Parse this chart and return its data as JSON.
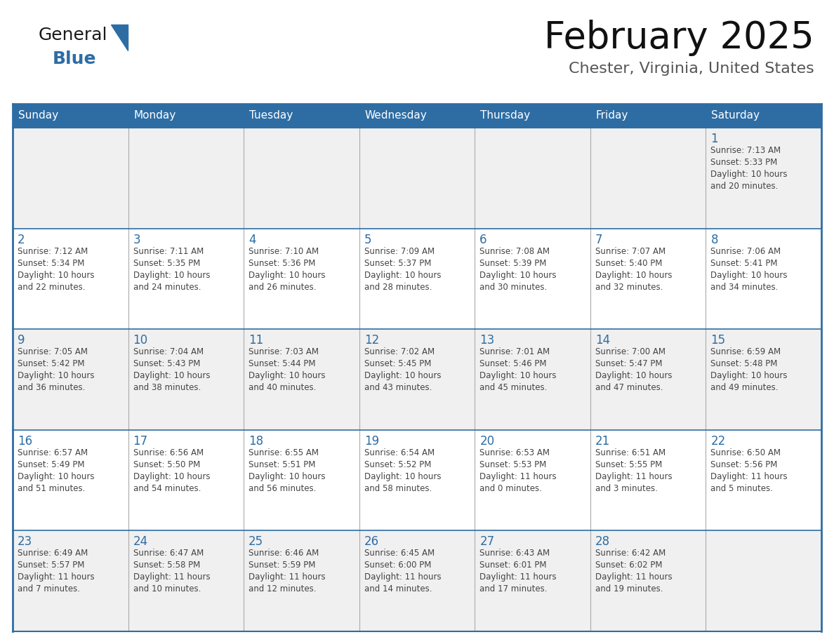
{
  "title": "February 2025",
  "subtitle": "Chester, Virginia, United States",
  "header_bg": "#2E6DA4",
  "header_text_color": "#FFFFFF",
  "cell_bg_odd_row": "#F0F0F0",
  "cell_bg_even_row": "#FFFFFF",
  "day_number_color": "#2E6DA4",
  "day_text_color": "#444444",
  "border_color": "#2E6DA4",
  "grid_line_color": "#AAAAAA",
  "days_of_week": [
    "Sunday",
    "Monday",
    "Tuesday",
    "Wednesday",
    "Thursday",
    "Friday",
    "Saturday"
  ],
  "weeks": [
    [
      {
        "day": null,
        "info": ""
      },
      {
        "day": null,
        "info": ""
      },
      {
        "day": null,
        "info": ""
      },
      {
        "day": null,
        "info": ""
      },
      {
        "day": null,
        "info": ""
      },
      {
        "day": null,
        "info": ""
      },
      {
        "day": 1,
        "info": "Sunrise: 7:13 AM\nSunset: 5:33 PM\nDaylight: 10 hours\nand 20 minutes."
      }
    ],
    [
      {
        "day": 2,
        "info": "Sunrise: 7:12 AM\nSunset: 5:34 PM\nDaylight: 10 hours\nand 22 minutes."
      },
      {
        "day": 3,
        "info": "Sunrise: 7:11 AM\nSunset: 5:35 PM\nDaylight: 10 hours\nand 24 minutes."
      },
      {
        "day": 4,
        "info": "Sunrise: 7:10 AM\nSunset: 5:36 PM\nDaylight: 10 hours\nand 26 minutes."
      },
      {
        "day": 5,
        "info": "Sunrise: 7:09 AM\nSunset: 5:37 PM\nDaylight: 10 hours\nand 28 minutes."
      },
      {
        "day": 6,
        "info": "Sunrise: 7:08 AM\nSunset: 5:39 PM\nDaylight: 10 hours\nand 30 minutes."
      },
      {
        "day": 7,
        "info": "Sunrise: 7:07 AM\nSunset: 5:40 PM\nDaylight: 10 hours\nand 32 minutes."
      },
      {
        "day": 8,
        "info": "Sunrise: 7:06 AM\nSunset: 5:41 PM\nDaylight: 10 hours\nand 34 minutes."
      }
    ],
    [
      {
        "day": 9,
        "info": "Sunrise: 7:05 AM\nSunset: 5:42 PM\nDaylight: 10 hours\nand 36 minutes."
      },
      {
        "day": 10,
        "info": "Sunrise: 7:04 AM\nSunset: 5:43 PM\nDaylight: 10 hours\nand 38 minutes."
      },
      {
        "day": 11,
        "info": "Sunrise: 7:03 AM\nSunset: 5:44 PM\nDaylight: 10 hours\nand 40 minutes."
      },
      {
        "day": 12,
        "info": "Sunrise: 7:02 AM\nSunset: 5:45 PM\nDaylight: 10 hours\nand 43 minutes."
      },
      {
        "day": 13,
        "info": "Sunrise: 7:01 AM\nSunset: 5:46 PM\nDaylight: 10 hours\nand 45 minutes."
      },
      {
        "day": 14,
        "info": "Sunrise: 7:00 AM\nSunset: 5:47 PM\nDaylight: 10 hours\nand 47 minutes."
      },
      {
        "day": 15,
        "info": "Sunrise: 6:59 AM\nSunset: 5:48 PM\nDaylight: 10 hours\nand 49 minutes."
      }
    ],
    [
      {
        "day": 16,
        "info": "Sunrise: 6:57 AM\nSunset: 5:49 PM\nDaylight: 10 hours\nand 51 minutes."
      },
      {
        "day": 17,
        "info": "Sunrise: 6:56 AM\nSunset: 5:50 PM\nDaylight: 10 hours\nand 54 minutes."
      },
      {
        "day": 18,
        "info": "Sunrise: 6:55 AM\nSunset: 5:51 PM\nDaylight: 10 hours\nand 56 minutes."
      },
      {
        "day": 19,
        "info": "Sunrise: 6:54 AM\nSunset: 5:52 PM\nDaylight: 10 hours\nand 58 minutes."
      },
      {
        "day": 20,
        "info": "Sunrise: 6:53 AM\nSunset: 5:53 PM\nDaylight: 11 hours\nand 0 minutes."
      },
      {
        "day": 21,
        "info": "Sunrise: 6:51 AM\nSunset: 5:55 PM\nDaylight: 11 hours\nand 3 minutes."
      },
      {
        "day": 22,
        "info": "Sunrise: 6:50 AM\nSunset: 5:56 PM\nDaylight: 11 hours\nand 5 minutes."
      }
    ],
    [
      {
        "day": 23,
        "info": "Sunrise: 6:49 AM\nSunset: 5:57 PM\nDaylight: 11 hours\nand 7 minutes."
      },
      {
        "day": 24,
        "info": "Sunrise: 6:47 AM\nSunset: 5:58 PM\nDaylight: 11 hours\nand 10 minutes."
      },
      {
        "day": 25,
        "info": "Sunrise: 6:46 AM\nSunset: 5:59 PM\nDaylight: 11 hours\nand 12 minutes."
      },
      {
        "day": 26,
        "info": "Sunrise: 6:45 AM\nSunset: 6:00 PM\nDaylight: 11 hours\nand 14 minutes."
      },
      {
        "day": 27,
        "info": "Sunrise: 6:43 AM\nSunset: 6:01 PM\nDaylight: 11 hours\nand 17 minutes."
      },
      {
        "day": 28,
        "info": "Sunrise: 6:42 AM\nSunset: 6:02 PM\nDaylight: 11 hours\nand 19 minutes."
      },
      {
        "day": null,
        "info": ""
      }
    ]
  ]
}
